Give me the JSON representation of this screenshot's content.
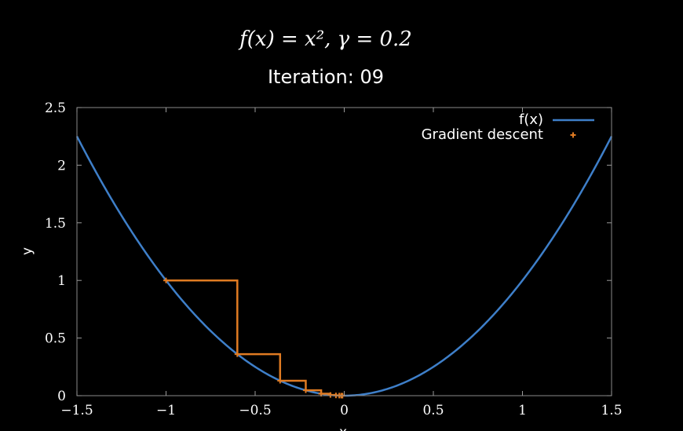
{
  "chart_data": {
    "type": "line",
    "title": "f(x) = x², γ = 0.2",
    "subtitle": "Iteration: 09",
    "xlabel": "x",
    "ylabel": "y",
    "xlim": [
      -1.5,
      1.5
    ],
    "ylim": [
      0,
      2.5
    ],
    "x_ticks": [
      -1.5,
      -1,
      -0.5,
      0,
      0.5,
      1,
      1.5
    ],
    "x_tick_labels": [
      "−1.5",
      "−1",
      "−0.5",
      "0",
      "0.5",
      "1",
      "1.5"
    ],
    "y_ticks": [
      0,
      0.5,
      1,
      1.5,
      2,
      2.5
    ],
    "y_tick_labels": [
      "0",
      "0.5",
      "1",
      "1.5",
      "2",
      "2.5"
    ],
    "legend_position": "top-right",
    "series": [
      {
        "name": "f(x)",
        "function": "x^2",
        "color": "#3e7fc9"
      },
      {
        "name": "Gradient descent",
        "color": "#e07b22",
        "points": [
          {
            "x": -1.0,
            "y": 1.0
          },
          {
            "x": -0.6,
            "y": 0.36
          },
          {
            "x": -0.36,
            "y": 0.1296
          },
          {
            "x": -0.216,
            "y": 0.046656
          },
          {
            "x": -0.1296,
            "y": 0.016796
          },
          {
            "x": -0.07776,
            "y": 0.006047
          },
          {
            "x": -0.046656,
            "y": 0.002177
          },
          {
            "x": -0.027994,
            "y": 0.000784
          },
          {
            "x": -0.016796,
            "y": 0.000282
          },
          {
            "x": -0.010078,
            "y": 0.000102
          }
        ]
      }
    ]
  }
}
